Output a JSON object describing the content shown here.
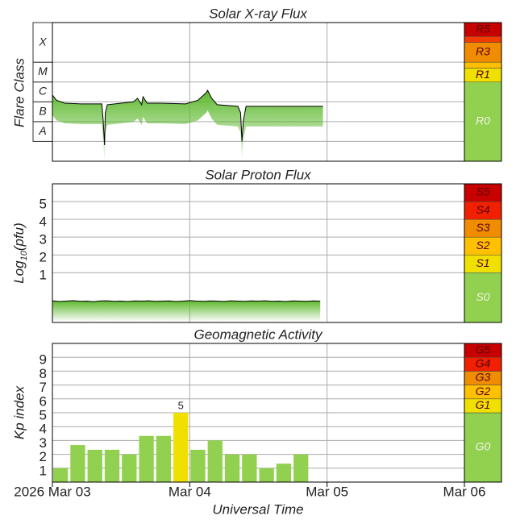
{
  "chart_data": [
    {
      "type": "line",
      "title": "Solar X-ray Flux",
      "y_label": "Flare Class",
      "log_scale": true,
      "ylim": [
        1e-09,
        0.01
      ],
      "xlim": [
        0,
        3
      ],
      "xticks": [
        0,
        1,
        2,
        3
      ],
      "flare_classes": {
        "labels": [
          "A",
          "B",
          "C",
          "M",
          "X"
        ],
        "bounds": [
          1e-08,
          1e-07,
          1e-06,
          1e-05,
          0.0001,
          0.01
        ]
      },
      "scale": {
        "labels": [
          "R0",
          "R1",
          null,
          "R3",
          null,
          "R5"
        ],
        "thresholds": [
          1e-05,
          5e-05,
          0.0001,
          0.001,
          0.002
        ],
        "colors": [
          "#92d050",
          "#f0e000",
          "#ffc000",
          "#f08c00",
          "#f03c00",
          "#c80000"
        ]
      },
      "color": "#000000",
      "fill_color": "#5cb82c",
      "x": [
        0,
        0.03,
        0.09,
        0.21,
        0.36,
        0.37,
        0.38,
        0.385,
        0.4,
        0.5,
        0.59,
        0.62,
        0.65,
        0.66,
        0.69,
        0.79,
        0.97,
        1.06,
        1.12,
        1.13,
        1.16,
        1.2,
        1.35,
        1.37,
        1.38,
        1.39,
        1.41,
        1.56,
        1.73,
        1.97
      ],
      "values": [
        2.2e-06,
        1.2e-06,
        8.5e-07,
        7.8e-07,
        7.8e-07,
        1.1e-07,
        6.5e-09,
        2.8e-07,
        7.1e-07,
        8.5e-07,
        1e-06,
        1.5e-06,
        7.1e-07,
        1.8e-06,
        8.5e-07,
        8.5e-07,
        7.8e-07,
        1.2e-06,
        2.9e-06,
        3.8e-06,
        1.5e-06,
        7.1e-07,
        5.9e-07,
        2.8e-07,
        1e-08,
        1.1e-07,
        5.9e-07,
        5.9e-07,
        5.9e-07,
        5.9e-07
      ]
    },
    {
      "type": "line",
      "title": "Solar Proton Flux",
      "y_label": {
        "text": "Log",
        "subscript": "10",
        "suffix": "(pfu)"
      },
      "ylim": [
        -1.8,
        6
      ],
      "yticks": [
        1,
        2,
        3,
        4,
        5
      ],
      "xlim": [
        0,
        3
      ],
      "xticks": [
        0,
        1,
        2,
        3
      ],
      "scale": {
        "labels": [
          "S0",
          "S1",
          "S2",
          "S3",
          "S4",
          "S5"
        ],
        "thresholds": [
          1,
          2,
          3,
          4,
          5
        ],
        "colors": [
          "#92d050",
          "#f0e000",
          "#ffc000",
          "#f08c00",
          "#f02000",
          "#c80000"
        ]
      },
      "color": "#000000",
      "fill_color": "#5cb82c",
      "x": [
        0,
        0.05,
        0.1,
        0.15,
        0.2,
        0.25,
        0.3,
        0.35,
        0.4,
        0.45,
        0.5,
        0.55,
        0.6,
        0.65,
        0.7,
        0.75,
        0.8,
        0.85,
        0.9,
        0.95,
        1,
        1.05,
        1.1,
        1.15,
        1.2,
        1.25,
        1.3,
        1.35,
        1.4,
        1.45,
        1.5,
        1.55,
        1.6,
        1.65,
        1.7,
        1.75,
        1.8,
        1.85,
        1.9,
        1.95
      ],
      "values": [
        -0.58,
        -0.62,
        -0.6,
        -0.57,
        -0.61,
        -0.6,
        -0.63,
        -0.59,
        -0.58,
        -0.61,
        -0.6,
        -0.62,
        -0.59,
        -0.6,
        -0.58,
        -0.61,
        -0.6,
        -0.59,
        -0.62,
        -0.6,
        -0.57,
        -0.6,
        -0.61,
        -0.59,
        -0.6,
        -0.62,
        -0.58,
        -0.6,
        -0.61,
        -0.59,
        -0.6,
        -0.58,
        -0.61,
        -0.6,
        -0.62,
        -0.59,
        -0.6,
        -0.61,
        -0.59,
        -0.6
      ]
    },
    {
      "type": "bar",
      "title": "Geomagnetic Activity",
      "y_label": "Kp index",
      "ylim": [
        0,
        10
      ],
      "yticks": [
        1,
        2,
        3,
        4,
        5,
        6,
        7,
        8,
        9
      ],
      "xlim": [
        0,
        3
      ],
      "xticks": [
        {
          "value": 0,
          "label": "2026 Mar 03"
        },
        {
          "value": 1,
          "label": "Mar 04"
        },
        {
          "value": 2,
          "label": "Mar 05"
        },
        {
          "value": 3,
          "label": "Mar 06"
        }
      ],
      "x_label": "Universal Time",
      "scale": {
        "labels": [
          "G0",
          "G1",
          "G2",
          "G3",
          "G4",
          "G5"
        ],
        "thresholds": [
          5,
          6,
          7,
          8,
          9
        ],
        "colors": [
          "#92d050",
          "#f0e000",
          "#ffc000",
          "#f08c00",
          "#f02000",
          "#c80000"
        ]
      },
      "x": [
        0,
        0.125,
        0.25,
        0.375,
        0.5,
        0.625,
        0.75,
        0.875,
        1,
        1.125,
        1.25,
        1.375,
        1.5,
        1.625,
        1.75
      ],
      "values": [
        1,
        2.67,
        2.33,
        2.33,
        2,
        3.33,
        3.33,
        5,
        2.33,
        3,
        2,
        2,
        1,
        1.33,
        2
      ],
      "value_labels": [
        null,
        null,
        null,
        null,
        null,
        null,
        null,
        "5",
        null,
        null,
        null,
        null,
        null,
        null,
        null
      ]
    }
  ]
}
